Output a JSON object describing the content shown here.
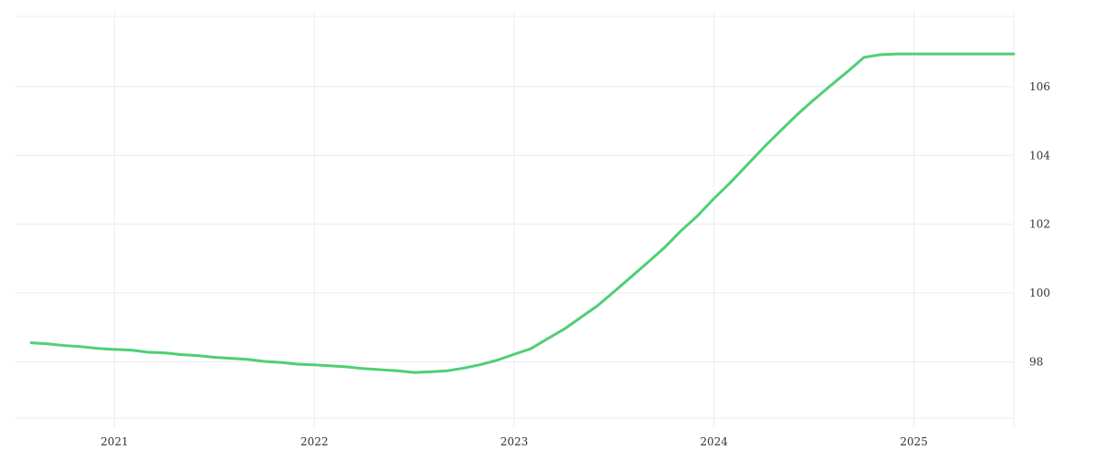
{
  "chart_data": {
    "type": "line",
    "title": "",
    "xlabel": "",
    "ylabel": "",
    "x_ticks": [
      "2021",
      "2022",
      "2023",
      "2024",
      "2025"
    ],
    "y_ticks": [
      98,
      100,
      102,
      104,
      106
    ],
    "xlim": [
      "2020-07",
      "2025-07"
    ],
    "ylim": [
      96.1,
      108.2
    ],
    "y_axis_position": "right",
    "grid": true,
    "legend": "none",
    "series": [
      {
        "color": "#4fcf74",
        "x": [
          "2020-08",
          "2020-09",
          "2020-10",
          "2020-11",
          "2020-12",
          "2021-01",
          "2021-02",
          "2021-03",
          "2021-04",
          "2021-05",
          "2021-06",
          "2021-07",
          "2021-08",
          "2021-09",
          "2021-10",
          "2021-11",
          "2021-12",
          "2022-01",
          "2022-02",
          "2022-03",
          "2022-04",
          "2022-05",
          "2022-06",
          "2022-07",
          "2022-08",
          "2022-09",
          "2022-10",
          "2022-11",
          "2022-12",
          "2023-01",
          "2023-02",
          "2023-03",
          "2023-04",
          "2023-05",
          "2023-06",
          "2023-07",
          "2023-08",
          "2023-09",
          "2023-10",
          "2023-11",
          "2023-12",
          "2024-01",
          "2024-02",
          "2024-03",
          "2024-04",
          "2024-05",
          "2024-06",
          "2024-07",
          "2024-08",
          "2024-09",
          "2024-10",
          "2024-11",
          "2024-12",
          "2025-01",
          "2025-02",
          "2025-03",
          "2025-04",
          "2025-05",
          "2025-06",
          "2025-07"
        ],
        "values": [
          98.55,
          98.52,
          98.47,
          98.44,
          98.39,
          98.36,
          98.34,
          98.28,
          98.26,
          98.21,
          98.18,
          98.13,
          98.1,
          98.07,
          98.01,
          97.98,
          97.93,
          97.91,
          97.88,
          97.85,
          97.8,
          97.77,
          97.74,
          97.69,
          97.71,
          97.74,
          97.82,
          97.92,
          98.05,
          98.22,
          98.38,
          98.67,
          98.95,
          99.29,
          99.63,
          100.04,
          100.46,
          100.88,
          101.31,
          101.8,
          102.24,
          102.75,
          103.22,
          103.73,
          104.24,
          104.72,
          105.19,
          105.62,
          106.03,
          106.43,
          106.85,
          106.93,
          106.95,
          106.95,
          106.95,
          106.95,
          106.95,
          106.95,
          106.95,
          106.95
        ]
      }
    ]
  }
}
